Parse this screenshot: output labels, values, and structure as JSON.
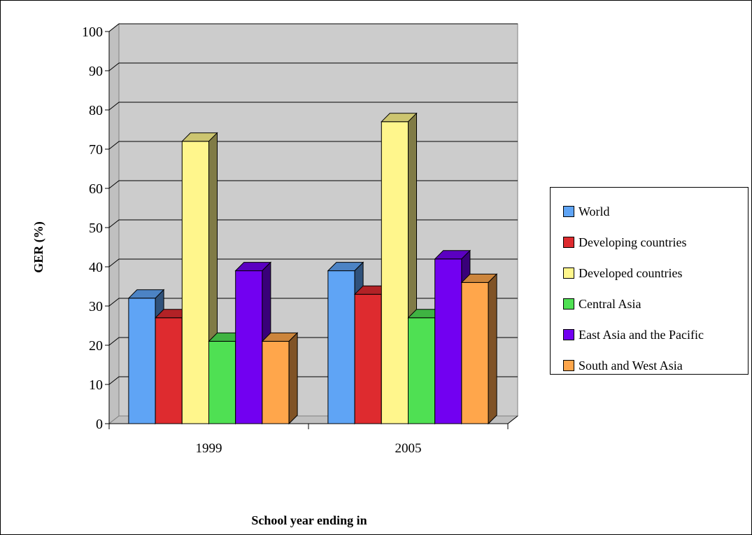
{
  "chart_data": {
    "type": "bar",
    "title": "",
    "xlabel": "School year ending in",
    "ylabel": "GER (%)",
    "ylim": [
      0,
      100
    ],
    "yticks": [
      "0",
      "10",
      "20",
      "30",
      "40",
      "50",
      "60",
      "70",
      "80",
      "90",
      "100"
    ],
    "categories": [
      "1999",
      "2005"
    ],
    "grid": true,
    "legend_position": "right",
    "series": [
      {
        "name": "World",
        "color": "#5fa4f5",
        "values": [
          32,
          39
        ]
      },
      {
        "name": "Developing countries",
        "color": "#de2b2f",
        "values": [
          27,
          33
        ]
      },
      {
        "name": "Developed countries",
        "color": "#fff68c",
        "values": [
          72,
          77
        ]
      },
      {
        "name": "Central Asia",
        "color": "#4fe053",
        "values": [
          21,
          27
        ]
      },
      {
        "name": "East Asia and the Pacific",
        "color": "#7200f1",
        "values": [
          39,
          42
        ]
      },
      {
        "name": "South and West Asia",
        "color": "#ffa64b",
        "values": [
          21,
          36
        ]
      }
    ]
  }
}
